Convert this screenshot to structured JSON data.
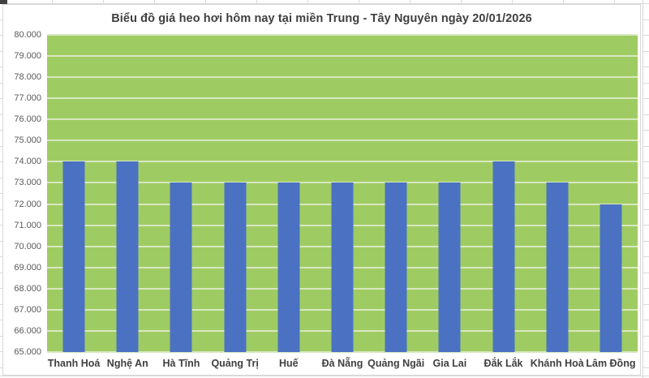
{
  "chart_data": {
    "type": "bar",
    "title": "Biểu đồ giá heo hơi hôm nay tại miền Trung - Tây Nguyên ngày 20/01/2026",
    "categories": [
      "Thanh Hoá",
      "Nghệ An",
      "Hà Tĩnh",
      "Quảng Trị",
      "Huế",
      "Đà Nẵng",
      "Quảng Ngãi",
      "Gia Lai",
      "Đắk Lắk",
      "Khánh Hoà",
      "Lâm Đồng"
    ],
    "values": [
      74000,
      74000,
      73000,
      73000,
      73000,
      73000,
      73000,
      73000,
      74000,
      73000,
      72000
    ],
    "xlabel": "",
    "ylabel": "",
    "ylim": [
      65000,
      80000
    ],
    "ytick_step": 1000,
    "ytick_labels": [
      "80.000",
      "79.000",
      "78.000",
      "77.000",
      "76.000",
      "75.000",
      "74.000",
      "73.000",
      "72.000",
      "71.000",
      "70.000",
      "69.000",
      "68.000",
      "67.000",
      "66.000",
      "65.000"
    ],
    "grid": "horizontal",
    "legend": "none",
    "colors": {
      "bar": "#4b72c2",
      "plot_background": "#9fcc62",
      "gridline": "#d8e7c0",
      "title_text": "#3f3f3f",
      "xaxis_text": "#3f3f3f",
      "yaxis_text": "#595959",
      "chart_background": "#ffffff",
      "chart_border": "#d9d9d9",
      "worksheet_line": "#d9d9d9"
    }
  }
}
